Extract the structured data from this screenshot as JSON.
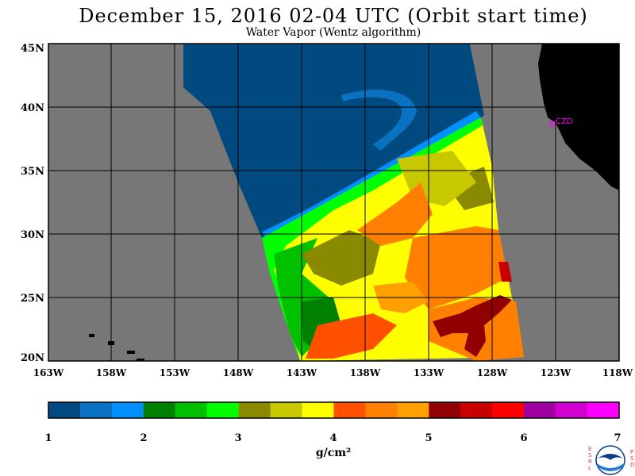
{
  "header": {
    "title": "December 15, 2016  02-04 UTC  (Orbit start time)",
    "subtitle": "Water Vapor (Wentz algorithm)"
  },
  "map": {
    "latitude_labels": [
      "45N",
      "40N",
      "35N",
      "30N",
      "25N",
      "20N"
    ],
    "longitude_labels": [
      "163W",
      "158W",
      "153W",
      "148W",
      "143W",
      "138W",
      "133W",
      "128W",
      "123W",
      "118W"
    ],
    "station_label": "CZD",
    "colors": {
      "no_data": "#777777",
      "land": "#000000",
      "grid": "#000000",
      "station": "#ff00ff"
    }
  },
  "colorbar": {
    "tick_labels": [
      "1",
      "2",
      "3",
      "4",
      "5",
      "6",
      "7"
    ],
    "units": "g/cm²",
    "colors": [
      "#004a80",
      "#0a72c0",
      "#0090ff",
      "#008000",
      "#00c000",
      "#00ff00",
      "#8a8a00",
      "#c8c800",
      "#ffff00",
      "#ff5000",
      "#ff8000",
      "#ffa000",
      "#900000",
      "#c80000",
      "#ff0000",
      "#a000a0",
      "#d000d0",
      "#ff00ff"
    ]
  },
  "logo": {
    "left_letters": "ESRL",
    "right_letters": "PSD",
    "name": "noaa-logo"
  }
}
